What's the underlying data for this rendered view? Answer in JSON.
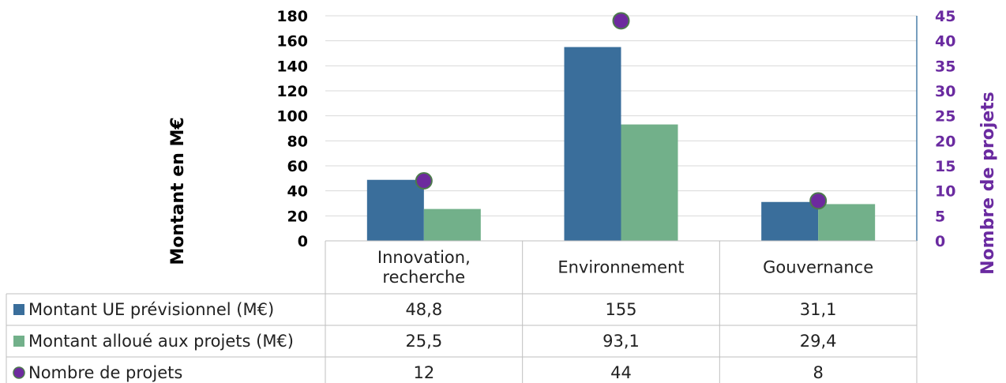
{
  "chart_data": {
    "type": "bar",
    "categories": [
      "Innovation, recherche",
      "Environnement",
      "Gouvernance"
    ],
    "category_lines": [
      [
        "Innovation,",
        "recherche"
      ],
      [
        "Environnement"
      ],
      [
        "Gouvernance"
      ]
    ],
    "series": [
      {
        "name": "Montant UE prévisionnel (M€)",
        "values": [
          48.8,
          155,
          31.1
        ],
        "display": [
          "48,8",
          "155",
          "31,1"
        ],
        "color": "#3a6e9b",
        "axis": "left",
        "mark": "bar"
      },
      {
        "name": "Montant alloué aux projets (M€)",
        "values": [
          25.5,
          93.1,
          29.4
        ],
        "display": [
          "25,5",
          "93,1",
          "29,4"
        ],
        "color": "#72b08a",
        "axis": "left",
        "mark": "bar"
      },
      {
        "name": "Nombre de projets",
        "values": [
          12,
          44,
          8
        ],
        "display": [
          "12",
          "44",
          "8"
        ],
        "color": "#6d2a9e",
        "axis": "right",
        "mark": "circle"
      }
    ],
    "ylabel": "Montant en M€",
    "y2label": "Nombre de projets",
    "ylim": [
      0,
      180
    ],
    "y2lim": [
      0,
      45
    ],
    "yticks": [
      0,
      20,
      40,
      60,
      80,
      100,
      120,
      140,
      160,
      180
    ],
    "y2ticks": [
      0,
      5,
      10,
      15,
      20,
      25,
      30,
      35,
      40,
      45
    ],
    "grid": true,
    "legend": "data-table",
    "colors": {
      "axis_right": "#6a2aa0",
      "grid": "#d9d9d9",
      "table_border": "#bfbfbf",
      "right_axis_line": "#4a7ea8"
    }
  }
}
